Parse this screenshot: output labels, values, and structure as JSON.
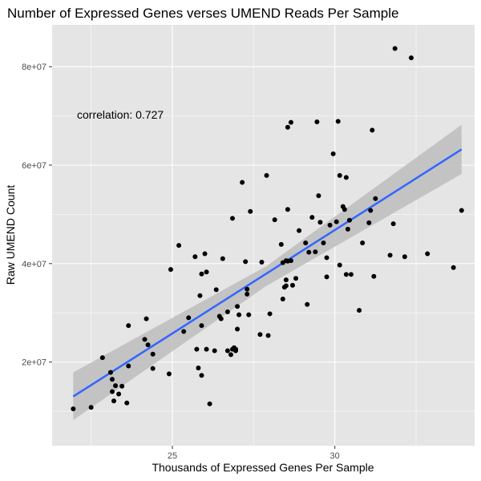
{
  "chart_data": {
    "type": "scatter",
    "title": "Number of Expressed Genes verses UMEND Reads Per Sample",
    "xlabel": "Thousands of Expressed Genes Per Sample",
    "ylabel": "Raw UMEND Count",
    "xlim": [
      21.3,
      34.3
    ],
    "ylim": [
      3000000,
      88500000
    ],
    "x_ticks": [
      25,
      30
    ],
    "x_tick_labels": [
      "25",
      "30"
    ],
    "y_ticks": [
      20000000,
      40000000,
      60000000,
      80000000
    ],
    "y_tick_labels": [
      "2e+07",
      "4e+07",
      "6e+07",
      "8e+07"
    ],
    "grid": true,
    "legend": "none",
    "annotation": "correlation: 0.727",
    "colors": {
      "panel_background": "#e5e5e5",
      "grid": "#ffffff",
      "points": "#000000",
      "fit_line": "#3366ff",
      "confidence_band": "#bdbdbd"
    },
    "trend_line": {
      "x": [
        21.95,
        33.9
      ],
      "y": [
        13000000,
        63200000
      ]
    },
    "confidence_band": {
      "x": [
        21.95,
        27.9,
        33.9
      ],
      "upper": [
        17900000,
        39500000,
        68200000
      ],
      "lower": [
        8200000,
        35500000,
        58200000
      ]
    },
    "points": [
      [
        21.95,
        10500000
      ],
      [
        22.5,
        10800000
      ],
      [
        22.85,
        20900000
      ],
      [
        23.1,
        17900000
      ],
      [
        23.15,
        16500000
      ],
      [
        23.15,
        14000000
      ],
      [
        23.2,
        12100000
      ],
      [
        23.25,
        15200000
      ],
      [
        23.35,
        13500000
      ],
      [
        23.45,
        15100000
      ],
      [
        23.6,
        11700000
      ],
      [
        23.65,
        19200000
      ],
      [
        23.65,
        27400000
      ],
      [
        24.15,
        24600000
      ],
      [
        24.2,
        28800000
      ],
      [
        24.25,
        23500000
      ],
      [
        24.4,
        18700000
      ],
      [
        24.4,
        21600000
      ],
      [
        24.9,
        17600000
      ],
      [
        24.95,
        38800000
      ],
      [
        25.2,
        43700000
      ],
      [
        25.35,
        26200000
      ],
      [
        25.5,
        29000000
      ],
      [
        25.7,
        41400000
      ],
      [
        25.75,
        22600000
      ],
      [
        25.8,
        18800000
      ],
      [
        25.85,
        33500000
      ],
      [
        25.9,
        17300000
      ],
      [
        25.9,
        27400000
      ],
      [
        25.9,
        37900000
      ],
      [
        26.0,
        42000000
      ],
      [
        26.05,
        22600000
      ],
      [
        26.05,
        38300000
      ],
      [
        26.15,
        11500000
      ],
      [
        26.3,
        22300000
      ],
      [
        26.35,
        34700000
      ],
      [
        26.45,
        29300000
      ],
      [
        26.5,
        28800000
      ],
      [
        26.55,
        41000000
      ],
      [
        26.7,
        30200000
      ],
      [
        26.7,
        22300000
      ],
      [
        26.8,
        21500000
      ],
      [
        26.85,
        22600000
      ],
      [
        26.85,
        49200000
      ],
      [
        26.9,
        22900000
      ],
      [
        26.95,
        22300000
      ],
      [
        26.95,
        22600000
      ],
      [
        27.0,
        26700000
      ],
      [
        27.0,
        31300000
      ],
      [
        27.05,
        29600000
      ],
      [
        27.15,
        56500000
      ],
      [
        27.25,
        40400000
      ],
      [
        27.3,
        34800000
      ],
      [
        27.3,
        33800000
      ],
      [
        27.35,
        29600000
      ],
      [
        27.4,
        50600000
      ],
      [
        27.7,
        25600000
      ],
      [
        27.75,
        40300000
      ],
      [
        27.9,
        57900000
      ],
      [
        27.95,
        25400000
      ],
      [
        28.0,
        29800000
      ],
      [
        28.15,
        48900000
      ],
      [
        28.35,
        43900000
      ],
      [
        28.4,
        32800000
      ],
      [
        28.4,
        40200000
      ],
      [
        28.45,
        35200000
      ],
      [
        28.5,
        35500000
      ],
      [
        28.5,
        36700000
      ],
      [
        28.5,
        40600000
      ],
      [
        28.55,
        67700000
      ],
      [
        28.55,
        51000000
      ],
      [
        28.55,
        40500000
      ],
      [
        28.65,
        68700000
      ],
      [
        28.65,
        40600000
      ],
      [
        28.7,
        35600000
      ],
      [
        28.8,
        37000000
      ],
      [
        28.9,
        46700000
      ],
      [
        29.1,
        44200000
      ],
      [
        29.15,
        31700000
      ],
      [
        29.2,
        42300000
      ],
      [
        29.3,
        49400000
      ],
      [
        29.4,
        42400000
      ],
      [
        29.45,
        68800000
      ],
      [
        29.5,
        53800000
      ],
      [
        29.55,
        48400000
      ],
      [
        29.65,
        44200000
      ],
      [
        29.75,
        41200000
      ],
      [
        29.75,
        37300000
      ],
      [
        29.85,
        47800000
      ],
      [
        29.95,
        62300000
      ],
      [
        30.05,
        48500000
      ],
      [
        30.1,
        68900000
      ],
      [
        30.15,
        57900000
      ],
      [
        30.15,
        39700000
      ],
      [
        30.25,
        51600000
      ],
      [
        30.3,
        51000000
      ],
      [
        30.35,
        57500000
      ],
      [
        30.35,
        37800000
      ],
      [
        30.4,
        47000000
      ],
      [
        30.45,
        48800000
      ],
      [
        30.5,
        37800000
      ],
      [
        30.75,
        30500000
      ],
      [
        30.85,
        44200000
      ],
      [
        31.05,
        48300000
      ],
      [
        31.1,
        50800000
      ],
      [
        31.15,
        67100000
      ],
      [
        31.2,
        37400000
      ],
      [
        31.25,
        53200000
      ],
      [
        31.7,
        41700000
      ],
      [
        31.8,
        48100000
      ],
      [
        31.85,
        83700000
      ],
      [
        32.15,
        41400000
      ],
      [
        32.35,
        81800000
      ],
      [
        32.85,
        42000000
      ],
      [
        33.65,
        39200000
      ],
      [
        33.9,
        50800000
      ]
    ]
  }
}
